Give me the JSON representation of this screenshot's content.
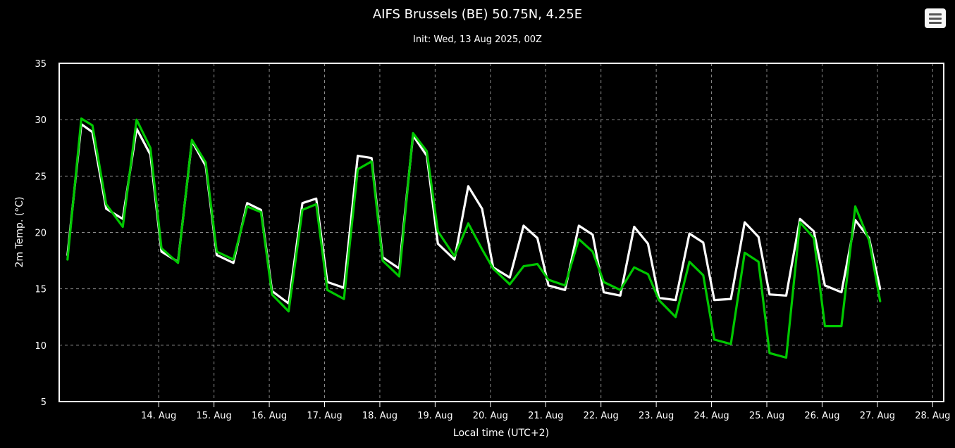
{
  "header": {
    "title": "AIFS Brussels (BE) 50.75N, 4.25E",
    "subtitle": "Init: Wed, 13 Aug 2025, 00Z"
  },
  "menu": {
    "icon": "hamburger-menu-icon"
  },
  "colors": {
    "background": "#000000",
    "grid": "#8a8a8a",
    "series_white": "#ffffff",
    "series_green": "#00c800"
  },
  "chart_data": {
    "type": "line",
    "title": "AIFS Brussels (BE) 50.75N, 4.25E",
    "subtitle": "Init: Wed, 13 Aug 2025, 00Z",
    "xlabel": "Local time (UTC+2)",
    "ylabel": "2m Temp. (°C)",
    "ylim": [
      5,
      35
    ],
    "yticks": [
      5,
      10,
      15,
      20,
      25,
      30,
      35
    ],
    "x_tick_labels": [
      "14. Aug",
      "15. Aug",
      "16. Aug",
      "17. Aug",
      "18. Aug",
      "19. Aug",
      "20. Aug",
      "21. Aug",
      "22. Aug",
      "23. Aug",
      "24. Aug",
      "25. Aug",
      "26. Aug",
      "27. Aug",
      "28. Aug"
    ],
    "x_tick_days": [
      1,
      2,
      3,
      4,
      5,
      6,
      7,
      8,
      9,
      10,
      11,
      12,
      13,
      14,
      15
    ],
    "xlim_days": [
      -0.8,
      15.2
    ],
    "grid": true,
    "series": [
      {
        "color": "#ffffff",
        "points": [
          [
            -0.65,
            18.0
          ],
          [
            -0.4,
            29.6
          ],
          [
            -0.2,
            28.9
          ],
          [
            0.05,
            22.1
          ],
          [
            0.35,
            21.2
          ],
          [
            0.6,
            29.2
          ],
          [
            0.85,
            26.9
          ],
          [
            1.05,
            18.3
          ],
          [
            1.35,
            17.4
          ],
          [
            1.6,
            28.1
          ],
          [
            1.85,
            25.9
          ],
          [
            2.05,
            18.0
          ],
          [
            2.35,
            17.3
          ],
          [
            2.6,
            22.6
          ],
          [
            2.85,
            22.0
          ],
          [
            3.05,
            14.8
          ],
          [
            3.35,
            13.7
          ],
          [
            3.6,
            22.6
          ],
          [
            3.85,
            23.0
          ],
          [
            4.05,
            15.6
          ],
          [
            4.35,
            15.1
          ],
          [
            4.6,
            26.8
          ],
          [
            4.85,
            26.6
          ],
          [
            5.05,
            17.8
          ],
          [
            5.35,
            16.8
          ],
          [
            5.6,
            28.6
          ],
          [
            5.85,
            26.8
          ],
          [
            6.05,
            19.0
          ],
          [
            6.35,
            17.6
          ],
          [
            6.6,
            24.1
          ],
          [
            6.85,
            22.1
          ],
          [
            7.05,
            16.9
          ],
          [
            7.35,
            16.0
          ],
          [
            7.6,
            20.6
          ],
          [
            7.85,
            19.5
          ],
          [
            8.05,
            15.3
          ],
          [
            8.35,
            14.9
          ],
          [
            8.6,
            20.6
          ],
          [
            8.85,
            19.8
          ],
          [
            9.05,
            14.7
          ],
          [
            9.35,
            14.4
          ],
          [
            9.6,
            20.5
          ],
          [
            9.85,
            19.0
          ],
          [
            10.05,
            14.2
          ],
          [
            10.35,
            14.0
          ],
          [
            10.6,
            19.9
          ],
          [
            10.85,
            19.1
          ],
          [
            11.05,
            14.0
          ],
          [
            11.35,
            14.1
          ],
          [
            11.6,
            20.9
          ],
          [
            11.85,
            19.6
          ],
          [
            12.05,
            14.5
          ],
          [
            12.35,
            14.4
          ],
          [
            12.6,
            21.2
          ],
          [
            12.85,
            20.1
          ],
          [
            13.05,
            15.3
          ],
          [
            13.35,
            14.7
          ],
          [
            13.6,
            21.1
          ],
          [
            13.85,
            19.5
          ],
          [
            14.05,
            15.0
          ]
        ]
      },
      {
        "color": "#00c800",
        "points": [
          [
            -0.65,
            17.6
          ],
          [
            -0.4,
            30.1
          ],
          [
            -0.2,
            29.5
          ],
          [
            0.05,
            22.5
          ],
          [
            0.35,
            20.5
          ],
          [
            0.6,
            30.0
          ],
          [
            0.85,
            27.5
          ],
          [
            1.05,
            18.6
          ],
          [
            1.35,
            17.3
          ],
          [
            1.6,
            28.2
          ],
          [
            1.85,
            26.2
          ],
          [
            2.05,
            18.3
          ],
          [
            2.35,
            17.6
          ],
          [
            2.6,
            22.3
          ],
          [
            2.85,
            21.8
          ],
          [
            3.05,
            14.5
          ],
          [
            3.35,
            13.0
          ],
          [
            3.6,
            22.0
          ],
          [
            3.85,
            22.5
          ],
          [
            4.05,
            14.9
          ],
          [
            4.35,
            14.1
          ],
          [
            4.6,
            25.6
          ],
          [
            4.85,
            26.3
          ],
          [
            5.05,
            17.5
          ],
          [
            5.35,
            16.1
          ],
          [
            5.6,
            28.8
          ],
          [
            5.85,
            27.2
          ],
          [
            6.05,
            20.1
          ],
          [
            6.35,
            17.9
          ],
          [
            6.6,
            20.8
          ],
          [
            6.85,
            18.5
          ],
          [
            7.05,
            16.8
          ],
          [
            7.35,
            15.4
          ],
          [
            7.6,
            17.0
          ],
          [
            7.85,
            17.2
          ],
          [
            8.05,
            15.8
          ],
          [
            8.35,
            15.3
          ],
          [
            8.6,
            19.4
          ],
          [
            8.85,
            18.3
          ],
          [
            9.05,
            15.6
          ],
          [
            9.35,
            14.9
          ],
          [
            9.6,
            16.9
          ],
          [
            9.85,
            16.3
          ],
          [
            10.05,
            14.0
          ],
          [
            10.35,
            12.5
          ],
          [
            10.6,
            17.4
          ],
          [
            10.85,
            16.2
          ],
          [
            11.05,
            10.5
          ],
          [
            11.35,
            10.1
          ],
          [
            11.6,
            18.2
          ],
          [
            11.85,
            17.4
          ],
          [
            12.05,
            9.3
          ],
          [
            12.35,
            8.9
          ],
          [
            12.6,
            20.9
          ],
          [
            12.85,
            19.5
          ],
          [
            13.05,
            11.7
          ],
          [
            13.35,
            11.7
          ],
          [
            13.6,
            22.3
          ],
          [
            13.85,
            19.3
          ],
          [
            14.05,
            13.9
          ]
        ]
      }
    ]
  }
}
